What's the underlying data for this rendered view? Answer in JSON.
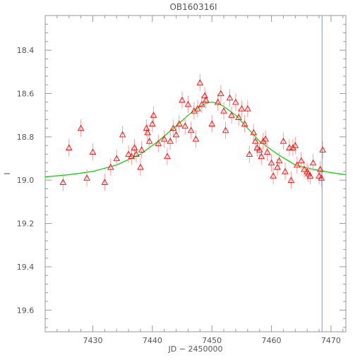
{
  "chart_data": {
    "type": "scatter",
    "title": "OB160316I",
    "xlabel": "JD − 2450000",
    "ylabel": "I",
    "xlim": [
      7422,
      7472.5
    ],
    "ylim": [
      19.7,
      18.24
    ],
    "y_inverted": true,
    "x_ticks": [
      7430,
      7440,
      7450,
      7460,
      7470
    ],
    "y_ticks": [
      18.4,
      18.6,
      18.8,
      19.0,
      19.2,
      19.4,
      19.6
    ],
    "y_tick_labels": [
      "18.4",
      "18.6",
      "18.8",
      "19.0",
      "19.2",
      "19.4",
      "19.6"
    ],
    "marker": "triangle",
    "colors": {
      "points": "#ff0000",
      "errorbars": "#ff9a9a",
      "model": "#00cc00",
      "vline": "#8899bb",
      "axis": "#999999"
    },
    "vline_x": 7468.5,
    "model": {
      "name": "",
      "x": [
        7422,
        7426,
        7430,
        7434,
        7438,
        7441,
        7444,
        7446,
        7448,
        7449,
        7450,
        7451,
        7452,
        7454,
        7456,
        7458,
        7461,
        7464,
        7467,
        7470,
        7472.5
      ],
      "y": [
        18.985,
        18.975,
        18.96,
        18.93,
        18.88,
        18.82,
        18.75,
        18.7,
        18.66,
        18.645,
        18.64,
        18.645,
        18.66,
        18.7,
        18.76,
        18.82,
        18.88,
        18.93,
        18.95,
        18.965,
        18.975
      ]
    },
    "series": [
      {
        "name": "",
        "points": [
          [
            7425.0,
            19.01,
            0.04
          ],
          [
            7426.0,
            18.85,
            0.04
          ],
          [
            7428.0,
            18.76,
            0.04
          ],
          [
            7429.0,
            18.99,
            0.04
          ],
          [
            7430.0,
            18.87,
            0.04
          ],
          [
            7432.0,
            19.01,
            0.04
          ],
          [
            7433.0,
            18.94,
            0.04
          ],
          [
            7434.0,
            18.9,
            0.04
          ],
          [
            7435.0,
            18.79,
            0.04
          ],
          [
            7436.0,
            18.88,
            0.04
          ],
          [
            7436.5,
            18.89,
            0.04
          ],
          [
            7437.0,
            18.85,
            0.04
          ],
          [
            7437.3,
            18.88,
            0.04
          ],
          [
            7438.0,
            18.94,
            0.04
          ],
          [
            7438.2,
            18.86,
            0.04
          ],
          [
            7439.0,
            18.76,
            0.04
          ],
          [
            7439.2,
            18.78,
            0.04
          ],
          [
            7439.5,
            18.82,
            0.04
          ],
          [
            7440.0,
            18.74,
            0.04
          ],
          [
            7440.2,
            18.7,
            0.04
          ],
          [
            7441.0,
            18.83,
            0.04
          ],
          [
            7442.0,
            18.81,
            0.04
          ],
          [
            7442.5,
            18.89,
            0.04
          ],
          [
            7443.0,
            18.82,
            0.04
          ],
          [
            7443.5,
            18.76,
            0.04
          ],
          [
            7444.0,
            18.79,
            0.04
          ],
          [
            7444.5,
            18.74,
            0.04
          ],
          [
            7445.0,
            18.63,
            0.04
          ],
          [
            7445.5,
            18.75,
            0.04
          ],
          [
            7446.0,
            18.65,
            0.04
          ],
          [
            7446.5,
            18.77,
            0.04
          ],
          [
            7447.0,
            18.68,
            0.04
          ],
          [
            7447.3,
            18.81,
            0.04
          ],
          [
            7447.6,
            18.67,
            0.04
          ],
          [
            7448.0,
            18.55,
            0.04
          ],
          [
            7448.3,
            18.65,
            0.04
          ],
          [
            7448.8,
            18.61,
            0.04
          ],
          [
            7449.0,
            18.63,
            0.04
          ],
          [
            7450.0,
            18.74,
            0.04
          ],
          [
            7451.0,
            18.64,
            0.04
          ],
          [
            7451.5,
            18.6,
            0.04
          ],
          [
            7452.0,
            18.68,
            0.04
          ],
          [
            7452.3,
            18.77,
            0.04
          ],
          [
            7453.0,
            18.62,
            0.04
          ],
          [
            7453.3,
            18.7,
            0.04
          ],
          [
            7454.0,
            18.64,
            0.04
          ],
          [
            7454.5,
            18.71,
            0.04
          ],
          [
            7455.0,
            18.67,
            0.04
          ],
          [
            7455.5,
            18.74,
            0.04
          ],
          [
            7456.0,
            18.67,
            0.04
          ],
          [
            7456.3,
            18.88,
            0.04
          ],
          [
            7457.0,
            18.78,
            0.04
          ],
          [
            7457.3,
            18.82,
            0.04
          ],
          [
            7457.6,
            18.85,
            0.04
          ],
          [
            7458.0,
            18.86,
            0.04
          ],
          [
            7458.3,
            18.89,
            0.04
          ],
          [
            7458.6,
            18.82,
            0.04
          ],
          [
            7459.0,
            18.81,
            0.04
          ],
          [
            7459.3,
            18.87,
            0.04
          ],
          [
            7460.0,
            18.92,
            0.04
          ],
          [
            7460.3,
            18.98,
            0.04
          ],
          [
            7461.0,
            18.94,
            0.04
          ],
          [
            7461.3,
            18.91,
            0.04
          ],
          [
            7462.0,
            18.82,
            0.04
          ],
          [
            7462.3,
            18.96,
            0.04
          ],
          [
            7463.0,
            18.85,
            0.04
          ],
          [
            7463.3,
            19.0,
            0.04
          ],
          [
            7463.6,
            18.85,
            0.04
          ],
          [
            7464.0,
            18.84,
            0.04
          ],
          [
            7464.3,
            18.93,
            0.04
          ],
          [
            7465.0,
            18.91,
            0.04
          ],
          [
            7465.5,
            18.95,
            0.04
          ],
          [
            7466.0,
            18.96,
            0.04
          ],
          [
            7466.2,
            18.97,
            0.04
          ],
          [
            7466.5,
            18.98,
            0.04
          ],
          [
            7467.0,
            18.92,
            0.04
          ],
          [
            7468.0,
            18.98,
            0.04
          ],
          [
            7468.2,
            18.95,
            0.04
          ],
          [
            7468.4,
            18.99,
            0.04
          ],
          [
            7468.6,
            18.86,
            0.04
          ]
        ]
      }
    ]
  }
}
